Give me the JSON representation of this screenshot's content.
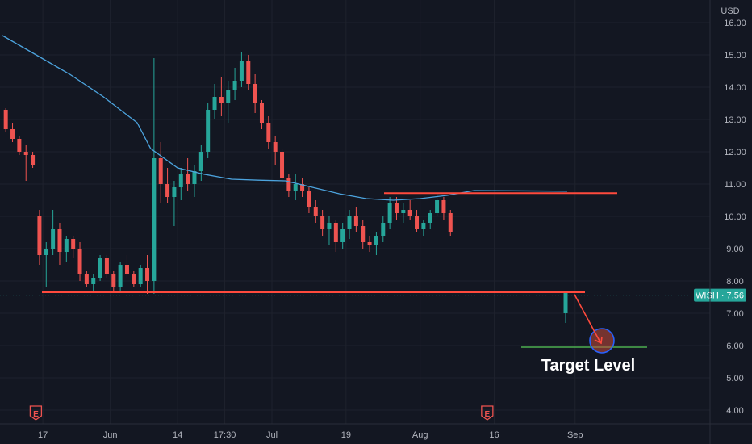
{
  "chart_data": {
    "type": "candlestick",
    "symbol": "WISH",
    "currency": "USD",
    "last_price": "7.56",
    "y_ticks": [
      "4.00",
      "5.00",
      "6.00",
      "7.00",
      "8.00",
      "9.00",
      "10.00",
      "11.00",
      "12.00",
      "13.00",
      "14.00",
      "15.00",
      "16.00"
    ],
    "ylim": [
      3.6,
      16.05
    ],
    "x_ticks": [
      {
        "label": "17",
        "i": 6
      },
      {
        "label": "Jun",
        "i": 16
      },
      {
        "label": "14",
        "i": 26
      },
      {
        "label": "17:30",
        "i": 33
      },
      {
        "label": "Jul",
        "i": 40
      },
      {
        "label": "19",
        "i": 51
      },
      {
        "label": "Aug",
        "i": 62
      },
      {
        "label": "16",
        "i": 73
      },
      {
        "label": "Sep",
        "i": 85
      }
    ],
    "x_count": 95,
    "earnings_markers": [
      {
        "label": "E",
        "i": 4
      },
      {
        "label": "E",
        "i": 71
      }
    ],
    "candles": [
      [
        13.3,
        13.35,
        12.6,
        12.7
      ],
      [
        12.7,
        12.9,
        12.3,
        12.4
      ],
      [
        12.4,
        12.5,
        11.9,
        12.0
      ],
      [
        12.0,
        12.2,
        11.1,
        11.9
      ],
      [
        11.9,
        12.0,
        11.5,
        11.6
      ],
      [
        10.0,
        10.2,
        8.5,
        8.8
      ],
      [
        8.8,
        9.2,
        7.8,
        9.0
      ],
      [
        9.0,
        10.2,
        8.8,
        9.6
      ],
      [
        9.6,
        9.8,
        8.5,
        8.9
      ],
      [
        8.9,
        9.4,
        8.6,
        9.3
      ],
      [
        9.3,
        9.4,
        8.7,
        9.0
      ],
      [
        9.0,
        9.2,
        8.0,
        8.2
      ],
      [
        8.2,
        8.3,
        7.8,
        7.9
      ],
      [
        7.9,
        8.2,
        7.7,
        8.1
      ],
      [
        8.1,
        8.8,
        8.0,
        8.7
      ],
      [
        8.7,
        8.8,
        8.1,
        8.2
      ],
      [
        8.2,
        8.3,
        7.7,
        7.8
      ],
      [
        7.8,
        8.6,
        7.7,
        8.5
      ],
      [
        8.5,
        8.8,
        8.1,
        8.2
      ],
      [
        8.2,
        8.3,
        7.8,
        7.9
      ],
      [
        7.9,
        8.5,
        7.8,
        8.4
      ],
      [
        8.4,
        8.8,
        7.6,
        8.0
      ],
      [
        8.0,
        14.9,
        7.6,
        11.8
      ],
      [
        11.8,
        12.3,
        10.4,
        11.0
      ],
      [
        11.0,
        11.5,
        10.4,
        10.6
      ],
      [
        10.6,
        11.1,
        9.7,
        10.9
      ],
      [
        10.9,
        11.5,
        10.5,
        11.3
      ],
      [
        11.3,
        11.8,
        10.8,
        11.0
      ],
      [
        11.0,
        11.6,
        10.6,
        11.4
      ],
      [
        11.4,
        12.2,
        11.1,
        12.0
      ],
      [
        12.0,
        13.5,
        11.8,
        13.3
      ],
      [
        13.3,
        14.1,
        13.0,
        13.7
      ],
      [
        13.7,
        14.3,
        13.1,
        13.5
      ],
      [
        13.5,
        14.2,
        12.9,
        13.9
      ],
      [
        13.9,
        14.6,
        13.6,
        14.2
      ],
      [
        14.2,
        15.1,
        14.0,
        14.8
      ],
      [
        14.8,
        15.0,
        13.9,
        14.1
      ],
      [
        14.1,
        14.4,
        13.2,
        13.5
      ],
      [
        13.5,
        13.6,
        12.7,
        12.9
      ],
      [
        12.9,
        13.1,
        12.1,
        12.3
      ],
      [
        12.3,
        12.5,
        11.6,
        12.0
      ],
      [
        12.0,
        12.1,
        11.0,
        11.2
      ],
      [
        11.2,
        11.3,
        10.6,
        10.8
      ],
      [
        10.8,
        11.3,
        10.5,
        11.0
      ],
      [
        11.0,
        11.2,
        10.6,
        10.8
      ],
      [
        10.8,
        10.9,
        10.1,
        10.3
      ],
      [
        10.3,
        10.5,
        9.8,
        10.0
      ],
      [
        10.0,
        10.2,
        9.4,
        9.6
      ],
      [
        9.6,
        10.0,
        9.1,
        9.8
      ],
      [
        9.8,
        9.9,
        8.9,
        9.2
      ],
      [
        9.2,
        9.8,
        9.0,
        9.6
      ],
      [
        9.6,
        10.2,
        9.3,
        10.0
      ],
      [
        10.0,
        10.3,
        9.5,
        9.7
      ],
      [
        9.7,
        9.9,
        9.0,
        9.2
      ],
      [
        9.2,
        9.4,
        8.9,
        9.1
      ],
      [
        9.1,
        9.5,
        8.8,
        9.4
      ],
      [
        9.4,
        10.0,
        9.2,
        9.8
      ],
      [
        9.8,
        10.6,
        9.6,
        10.4
      ],
      [
        10.4,
        10.6,
        9.9,
        10.1
      ],
      [
        10.1,
        10.4,
        9.8,
        10.2
      ],
      [
        10.2,
        10.5,
        9.9,
        10.0
      ],
      [
        10.0,
        10.2,
        9.5,
        9.6
      ],
      [
        9.6,
        9.9,
        9.4,
        9.8
      ],
      [
        9.8,
        10.2,
        9.6,
        10.1
      ],
      [
        10.1,
        10.7,
        10.0,
        10.5
      ],
      [
        10.5,
        10.6,
        9.9,
        10.1
      ],
      [
        10.1,
        10.2,
        9.4,
        9.5
      ]
    ],
    "ma_line": [
      [
        0,
        15.6
      ],
      [
        5,
        15.0
      ],
      [
        10,
        14.4
      ],
      [
        15,
        13.7
      ],
      [
        20,
        12.9
      ],
      [
        22,
        12.1
      ],
      [
        26,
        11.5
      ],
      [
        30,
        11.3
      ],
      [
        34,
        11.15
      ],
      [
        38,
        11.12
      ],
      [
        42,
        11.1
      ],
      [
        46,
        10.9
      ],
      [
        50,
        10.7
      ],
      [
        54,
        10.55
      ],
      [
        58,
        10.5
      ],
      [
        62,
        10.55
      ],
      [
        66,
        10.65
      ],
      [
        70,
        10.8
      ]
    ],
    "annotations": {
      "resistance_level": 10.72,
      "support_level": 7.65,
      "target_level": 5.95,
      "target_label": "Target Level",
      "gap_candle": [
        7.6,
        7.7,
        6.7,
        7.0
      ]
    }
  }
}
